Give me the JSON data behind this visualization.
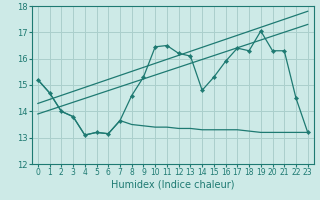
{
  "title": "",
  "xlabel": "Humidex (Indice chaleur)",
  "ylabel": "",
  "xlim": [
    -0.5,
    23.5
  ],
  "ylim": [
    12,
    18
  ],
  "yticks": [
    12,
    13,
    14,
    15,
    16,
    17,
    18
  ],
  "xticks": [
    0,
    1,
    2,
    3,
    4,
    5,
    6,
    7,
    8,
    9,
    10,
    11,
    12,
    13,
    14,
    15,
    16,
    17,
    18,
    19,
    20,
    21,
    22,
    23
  ],
  "bg_color": "#cdeae7",
  "grid_color": "#aacfcc",
  "line_color": "#1e7a72",
  "main_line_y": [
    15.2,
    14.7,
    14.0,
    13.8,
    13.1,
    13.2,
    13.15,
    13.65,
    14.6,
    15.3,
    16.45,
    16.5,
    16.2,
    16.1,
    14.8,
    15.3,
    15.9,
    16.4,
    16.3,
    17.05,
    16.3,
    16.3,
    14.5,
    13.2
  ],
  "lower_line_y": [
    15.2,
    14.7,
    14.0,
    13.8,
    13.1,
    13.2,
    13.15,
    13.65,
    13.5,
    13.45,
    13.4,
    13.4,
    13.35,
    13.35,
    13.3,
    13.3,
    13.3,
    13.3,
    13.25,
    13.2,
    13.2,
    13.2,
    13.2,
    13.2
  ],
  "trend1_x": [
    0,
    23
  ],
  "trend1_y": [
    14.3,
    17.8
  ],
  "trend2_x": [
    0,
    23
  ],
  "trend2_y": [
    13.9,
    17.3
  ],
  "xlabel_fontsize": 7,
  "tick_fontsize": 5.5
}
